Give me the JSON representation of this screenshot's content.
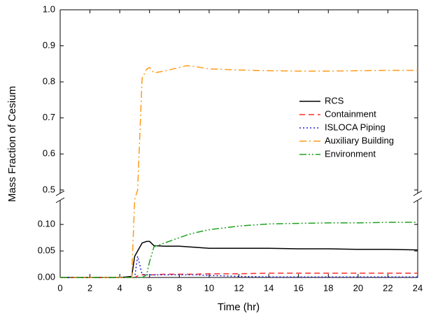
{
  "chart_data": {
    "type": "line",
    "x_label": "Time (hr)",
    "y_label": "Mass Fraction of Cesium",
    "x": [
      0,
      4,
      4.8,
      5,
      5.2,
      5.5,
      5.8,
      6,
      6.3,
      7,
      8,
      8.5,
      9,
      10,
      12,
      14,
      16,
      18,
      20,
      22,
      24
    ],
    "xlim": [
      0,
      24
    ],
    "xticks": [
      0,
      2,
      4,
      6,
      8,
      10,
      12,
      14,
      16,
      18,
      20,
      22,
      24
    ],
    "y_segments": [
      {
        "ylim": [
          0,
          0.145
        ],
        "yticks": [
          {
            "value": 0,
            "label": "0.00"
          },
          {
            "value": 0.05,
            "label": "0.05"
          },
          {
            "value": 0.1,
            "label": "0.10"
          }
        ]
      },
      {
        "ylim": [
          0.49,
          1.0
        ],
        "yticks": [
          0.5,
          0.6,
          0.7,
          0.8,
          0.9,
          {
            "value": 1.0,
            "label": "1.0"
          }
        ]
      }
    ],
    "legend": "upper right",
    "series": [
      {
        "name": "RCS",
        "color": "#000000",
        "values": [
          0,
          0,
          0.002,
          0.04,
          0.05,
          0.065,
          0.068,
          0.068,
          0.06,
          0.059,
          0.059,
          0.058,
          0.057,
          0.055,
          0.055,
          0.055,
          0.054,
          0.054,
          0.053,
          0.053,
          0.052
        ]
      },
      {
        "name": "Containment",
        "color": "#ff2a2a",
        "values": [
          0,
          0,
          0,
          0,
          0.003,
          0.005,
          0.005,
          0.005,
          0.005,
          0.006,
          0.006,
          0.006,
          0.006,
          0.007,
          0.007,
          0.008,
          0.008,
          0.008,
          0.008,
          0.008,
          0.008
        ]
      },
      {
        "name": "ISLOCA Piping",
        "color": "#2323d0",
        "values": [
          0,
          0,
          0,
          0,
          0.04,
          0.006,
          0.005,
          0.005,
          0.005,
          0.005,
          0.005,
          0.005,
          0.005,
          0.004,
          0.002,
          0.001,
          0.001,
          0.001,
          0.001,
          0.001,
          0.001
        ]
      },
      {
        "name": "Auxiliary Building",
        "color": "#ff9b1a",
        "values": [
          0,
          0,
          0,
          0.2,
          0.5,
          0.81,
          0.835,
          0.84,
          0.825,
          0.83,
          0.84,
          0.845,
          0.843,
          0.836,
          0.833,
          0.831,
          0.83,
          0.83,
          0.831,
          0.832,
          0.832
        ]
      },
      {
        "name": "Environment",
        "color": "#22a022",
        "values": [
          0,
          0,
          0,
          0,
          0,
          0,
          0.005,
          0.03,
          0.058,
          0.065,
          0.075,
          0.08,
          0.084,
          0.09,
          0.097,
          0.101,
          0.102,
          0.103,
          0.103,
          0.104,
          0.104
        ]
      }
    ]
  }
}
